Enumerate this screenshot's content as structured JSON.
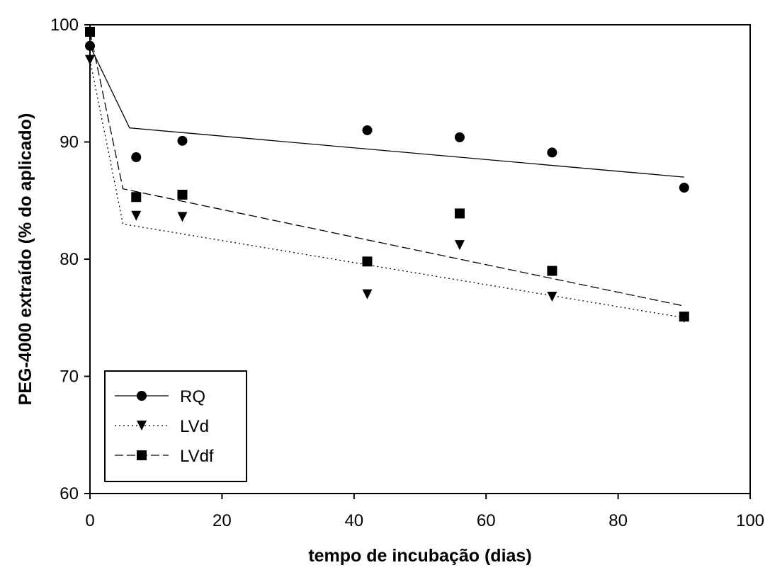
{
  "chart_data": {
    "type": "scatter",
    "title": "",
    "xlabel": "tempo de incubação (dias)",
    "ylabel": "PEG-4000 extraído (% do aplicado)",
    "xlim": [
      0,
      100
    ],
    "ylim": [
      60,
      100
    ],
    "xticks": [
      "0",
      "20",
      "40",
      "60",
      "80",
      "100"
    ],
    "yticks": [
      "60",
      "70",
      "80",
      "90",
      "100"
    ],
    "grid": false,
    "legend_position": "bottom-left",
    "series": [
      {
        "name": "RQ",
        "marker": "circle",
        "line_style": "solid",
        "points": [
          [
            0,
            98.2
          ],
          [
            7,
            88.7
          ],
          [
            14,
            90.1
          ],
          [
            42,
            91.0
          ],
          [
            56,
            90.4
          ],
          [
            70,
            89.1
          ],
          [
            90,
            86.1
          ]
        ],
        "fit": {
          "start": [
            0,
            98.2
          ],
          "bend": [
            6,
            91.2
          ],
          "end": [
            90,
            87.0
          ]
        }
      },
      {
        "name": "LVd",
        "marker": "triangle-down",
        "line_style": "dotted",
        "points": [
          [
            0,
            97.0
          ],
          [
            7,
            83.7
          ],
          [
            14,
            83.6
          ],
          [
            42,
            77.0
          ],
          [
            56,
            81.2
          ],
          [
            70,
            76.8
          ],
          [
            90,
            75.0
          ]
        ],
        "fit": {
          "start": [
            0,
            97.0
          ],
          "bend": [
            5,
            83.0
          ],
          "end": [
            90,
            75.0
          ]
        }
      },
      {
        "name": "LVdf",
        "marker": "square",
        "line_style": "dashed",
        "points": [
          [
            0,
            99.4
          ],
          [
            7,
            85.3
          ],
          [
            14,
            85.5
          ],
          [
            42,
            79.8
          ],
          [
            56,
            83.9
          ],
          [
            70,
            79.0
          ],
          [
            90,
            75.1
          ]
        ],
        "fit": {
          "start": [
            0,
            99.4
          ],
          "bend": [
            5,
            86.0
          ],
          "end": [
            90,
            76.0
          ]
        }
      }
    ]
  }
}
